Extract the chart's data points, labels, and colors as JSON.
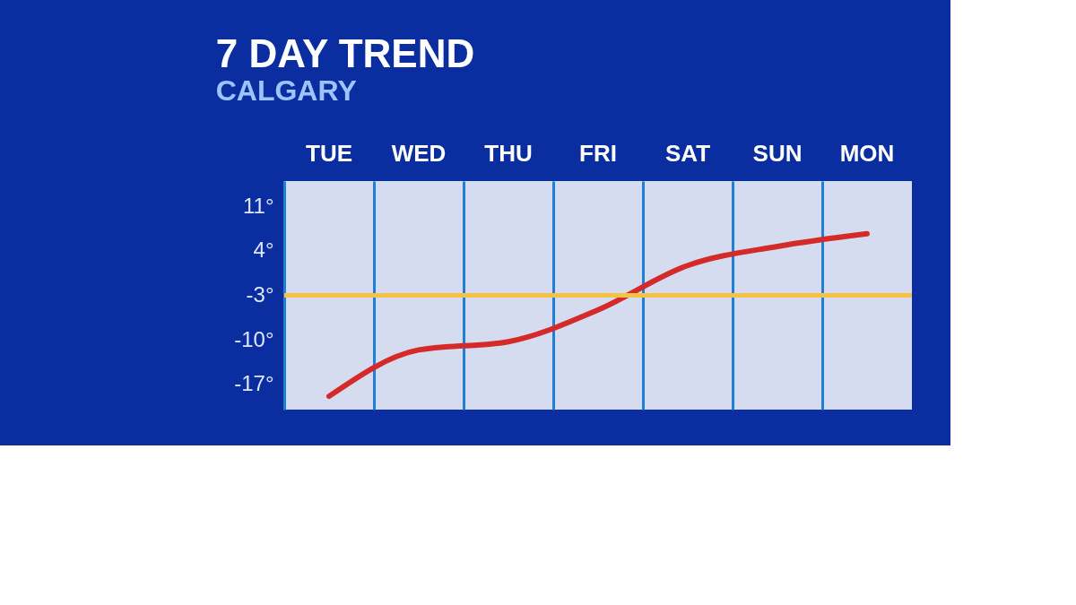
{
  "chart_data": {
    "type": "line",
    "title": "7 DAY TREND",
    "subtitle": "CALGARY",
    "categories": [
      "TUE",
      "WED",
      "THU",
      "FRI",
      "SAT",
      "SUN",
      "MON"
    ],
    "series": [
      {
        "color": "#d42a2a",
        "values": [
          -18.9,
          -11.6,
          -10.3,
          -5.3,
          1.7,
          4.7,
          6.7
        ]
      }
    ],
    "ylim": [
      -21,
      15
    ],
    "yticks": [
      {
        "value": 11,
        "label": "11°"
      },
      {
        "value": 4,
        "label": "4°"
      },
      {
        "value": -3,
        "label": "-3°"
      },
      {
        "value": -10,
        "label": "-10°"
      },
      {
        "value": -17,
        "label": "-17°"
      }
    ],
    "ref_lines": [
      {
        "axis": "y",
        "value": -3,
        "color": "#f5c242"
      }
    ],
    "grid": "x",
    "marker": "none",
    "line_style": "solid"
  }
}
